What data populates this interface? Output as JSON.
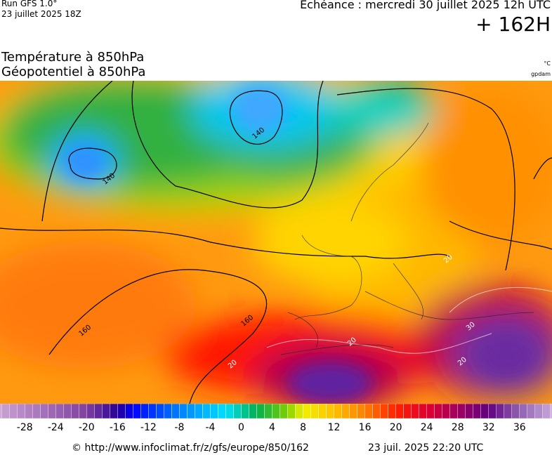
{
  "header": {
    "run": "Run GFS 1.0°",
    "run_date": "23 juillet 2025 18Z",
    "forecast": "Echéance : mercredi 30 juillet 2025 12h UTC",
    "lead": "+ 162H"
  },
  "fields": {
    "temperature": "Température à 850hPa",
    "geopotential": "Géopotentiel à 850hPa",
    "temperature_unit": "°C",
    "geopotential_unit": "gpdam"
  },
  "map": {
    "contour_labels": [
      "140",
      "140",
      "160",
      "160",
      "20",
      "20",
      "20",
      "30",
      "20"
    ]
  },
  "colorbar": {
    "limits": [
      -31.2,
      40.2
    ],
    "ticks": [
      -28,
      -24,
      -20,
      -16,
      -12,
      -8,
      -4,
      0,
      4,
      8,
      12,
      16,
      20,
      24,
      28,
      32,
      36
    ]
  },
  "footer": {
    "url": "© http://www.infoclimat.fr/z/gfs/europe/850/162",
    "timestamp": "23 juil. 2025 22:20 UTC"
  }
}
